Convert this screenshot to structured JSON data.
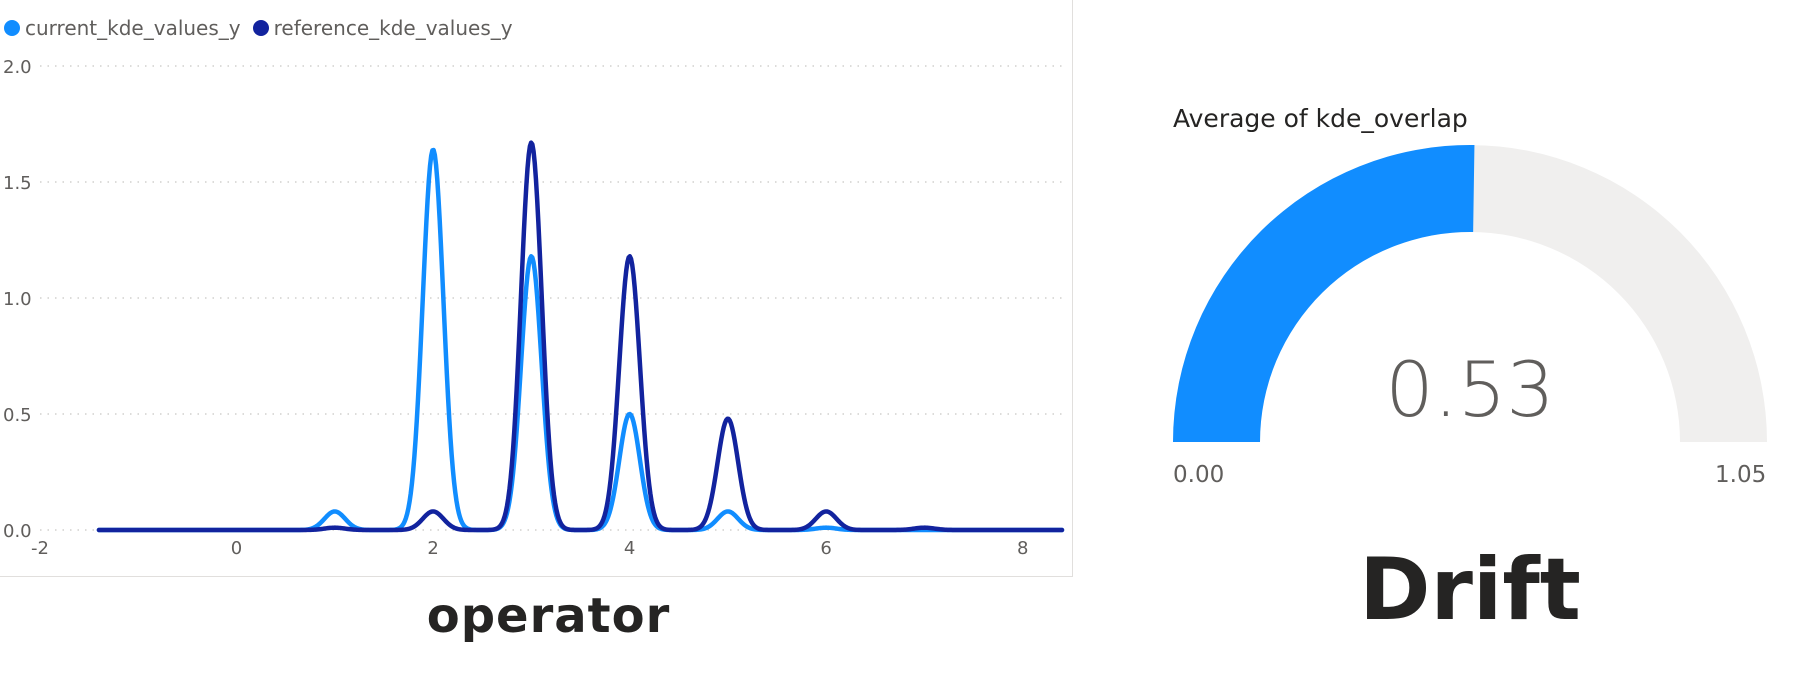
{
  "legend": {
    "items": [
      {
        "label": "current_kde_values_y",
        "color": "#118DFF"
      },
      {
        "label": "reference_kde_values_y",
        "color": "#12239E"
      }
    ]
  },
  "chart_caption": "operator",
  "chart_data": [
    {
      "type": "line",
      "xlim": [
        -2,
        8.4
      ],
      "ylim": [
        0,
        2.0
      ],
      "x_ticks": [
        "-2",
        "0",
        "2",
        "4",
        "6",
        "8"
      ],
      "y_ticks": [
        "0.0",
        "0.5",
        "1.0",
        "1.5",
        "2.0"
      ],
      "grid": true,
      "legend_position": "top-left",
      "x_range": [
        -1.4,
        8.4
      ],
      "series": [
        {
          "name": "current_kde_values_y",
          "color": "#118DFF",
          "peaks": [
            {
              "x": 1,
              "y": 0.08
            },
            {
              "x": 2,
              "y": 1.64
            },
            {
              "x": 3,
              "y": 1.18
            },
            {
              "x": 4,
              "y": 0.5
            },
            {
              "x": 5,
              "y": 0.08
            },
            {
              "x": 6,
              "y": 0.01
            }
          ]
        },
        {
          "name": "reference_kde_values_y",
          "color": "#12239E",
          "peaks": [
            {
              "x": 1,
              "y": 0.01
            },
            {
              "x": 2,
              "y": 0.08
            },
            {
              "x": 3,
              "y": 1.67
            },
            {
              "x": 4,
              "y": 1.18
            },
            {
              "x": 5,
              "y": 0.48
            },
            {
              "x": 6,
              "y": 0.08
            },
            {
              "x": 7,
              "y": 0.01
            }
          ]
        }
      ]
    },
    {
      "type": "gauge",
      "title": "Average of kde_overlap",
      "value": 0.53,
      "value_label": "0.53",
      "min": 0.0,
      "max": 1.05,
      "min_label": "0.00",
      "max_label": "1.05",
      "fill_color": "#118DFF",
      "track_color": "#F0EFEE"
    }
  ],
  "gauge_caption": "Drift"
}
